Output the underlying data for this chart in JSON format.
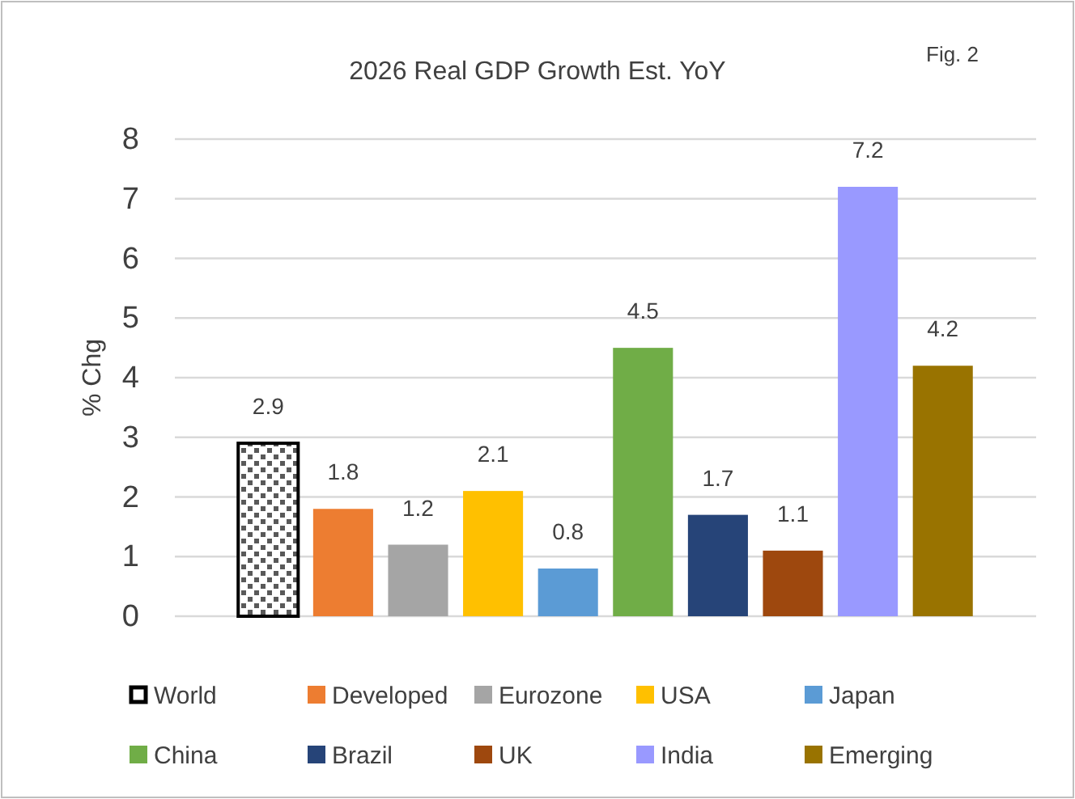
{
  "chart_data": {
    "type": "bar",
    "title": "2026 Real GDP Growth Est. YoY",
    "ylabel": "% Chg",
    "annotations": [
      "Fig. 2"
    ],
    "categories": [
      null,
      null,
      null,
      null,
      null,
      null,
      null,
      null,
      null,
      null
    ],
    "stacked": true,
    "data_labels": true,
    "grid": "y",
    "legend": "bottom",
    "ylim": [
      0,
      8
    ],
    "yticks": [
      0,
      1,
      2,
      3,
      4,
      5,
      6,
      7,
      8
    ],
    "series": [
      {
        "name": "World",
        "color": "#000000",
        "values": [
          2.9,
          null,
          null,
          null,
          null,
          null,
          null,
          null,
          null,
          null
        ]
      },
      {
        "name": "Developed",
        "color": "#ed7d31",
        "values": [
          null,
          1.8,
          null,
          null,
          null,
          null,
          null,
          null,
          null,
          null
        ]
      },
      {
        "name": "Eurozone",
        "color": "#a5a5a5",
        "values": [
          null,
          null,
          1.2,
          null,
          null,
          null,
          null,
          null,
          null,
          null
        ]
      },
      {
        "name": "USA",
        "color": "#ffc000",
        "values": [
          null,
          null,
          null,
          2.1,
          null,
          null,
          null,
          null,
          null,
          null
        ]
      },
      {
        "name": "Japan",
        "color": "#5b9bd5",
        "values": [
          null,
          null,
          null,
          null,
          0.8,
          null,
          null,
          null,
          null,
          null
        ]
      },
      {
        "name": "China",
        "color": "#70ad47",
        "values": [
          null,
          null,
          null,
          null,
          null,
          4.5,
          null,
          null,
          null,
          null
        ]
      },
      {
        "name": "Brazil",
        "color": "#264478",
        "values": [
          null,
          null,
          null,
          null,
          null,
          null,
          1.7,
          null,
          null,
          null
        ]
      },
      {
        "name": "UK",
        "color": "#9e480e",
        "values": [
          null,
          null,
          null,
          null,
          null,
          null,
          null,
          1.1,
          null,
          null
        ]
      },
      {
        "name": "India",
        "color": "#9999ff",
        "values": [
          null,
          null,
          null,
          null,
          null,
          null,
          null,
          null,
          7.2,
          null
        ]
      },
      {
        "name": "Emerging",
        "color": "#997300",
        "values": [
          null,
          null,
          null,
          null,
          null,
          null,
          null,
          null,
          null,
          4.2
        ]
      }
    ]
  }
}
